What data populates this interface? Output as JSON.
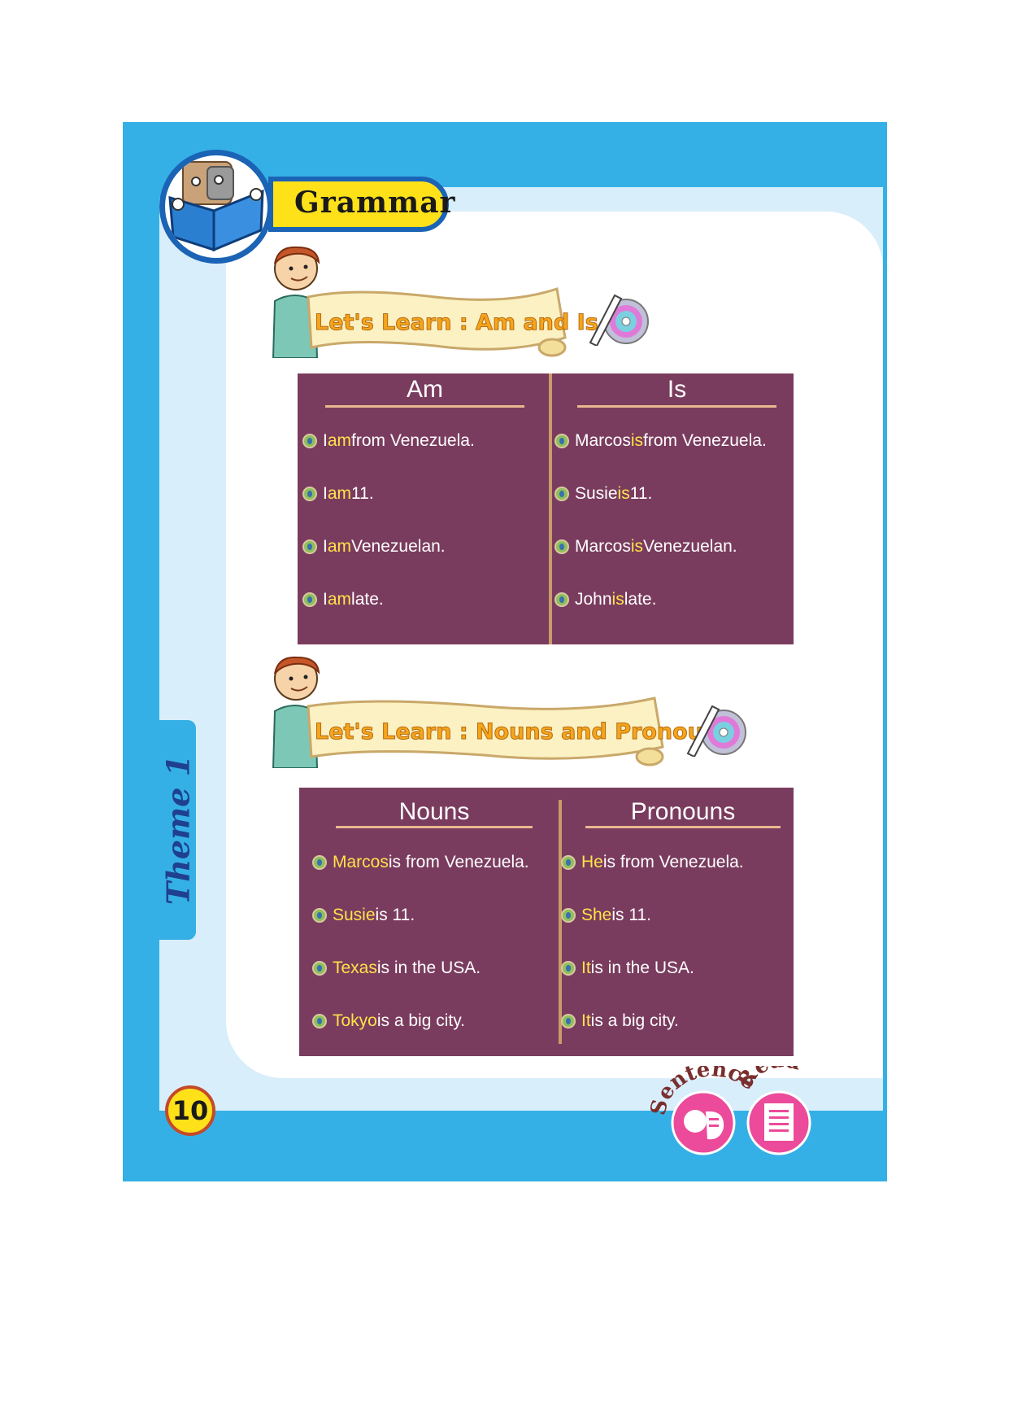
{
  "header": {
    "title": "Grammar"
  },
  "side_tab": {
    "label": "Theme 1"
  },
  "section1": {
    "banner": "Let's Learn : Am and Is",
    "left_header": "Am",
    "right_header": "Is",
    "left_rows": [
      {
        "a": "I ",
        "hl": "am",
        "b": " from Venezuela."
      },
      {
        "a": "I ",
        "hl": "am",
        "b": " 11."
      },
      {
        "a": "I ",
        "hl": "am",
        "b": " Venezuelan."
      },
      {
        "a": "I ",
        "hl": "am",
        "b": " late."
      }
    ],
    "right_rows": [
      {
        "a": "Marcos ",
        "hl": "is",
        "b": " from Venezuela."
      },
      {
        "a": "Susie ",
        "hl": "is",
        "b": " 11."
      },
      {
        "a": "Marcos ",
        "hl": "is",
        "b": " Venezuelan."
      },
      {
        "a": "John ",
        "hl": "is",
        "b": " late."
      }
    ]
  },
  "section2": {
    "banner": "Let's Learn : Nouns and Pronouns",
    "left_header": "Nouns",
    "right_header": "Pronouns",
    "left_rows": [
      {
        "a": "",
        "hl": "Marcos",
        "b": " is from Venezuela."
      },
      {
        "a": "",
        "hl": "Susie",
        "b": " is 11."
      },
      {
        "a": "",
        "hl": "Texas",
        "b": " is in the USA."
      },
      {
        "a": "",
        "hl": "Tokyo",
        "b": " is a big city."
      }
    ],
    "right_rows": [
      {
        "a": "",
        "hl": "He",
        "b": " is from Venezuela."
      },
      {
        "a": "",
        "hl": "She",
        "b": " is 11."
      },
      {
        "a": "",
        "hl": "It",
        "b": " is in the USA."
      },
      {
        "a": "",
        "hl": "It",
        "b": " is a big city."
      }
    ]
  },
  "footer": {
    "page_number": "10",
    "sentence_label": "Sentence",
    "read_label": "Read"
  }
}
